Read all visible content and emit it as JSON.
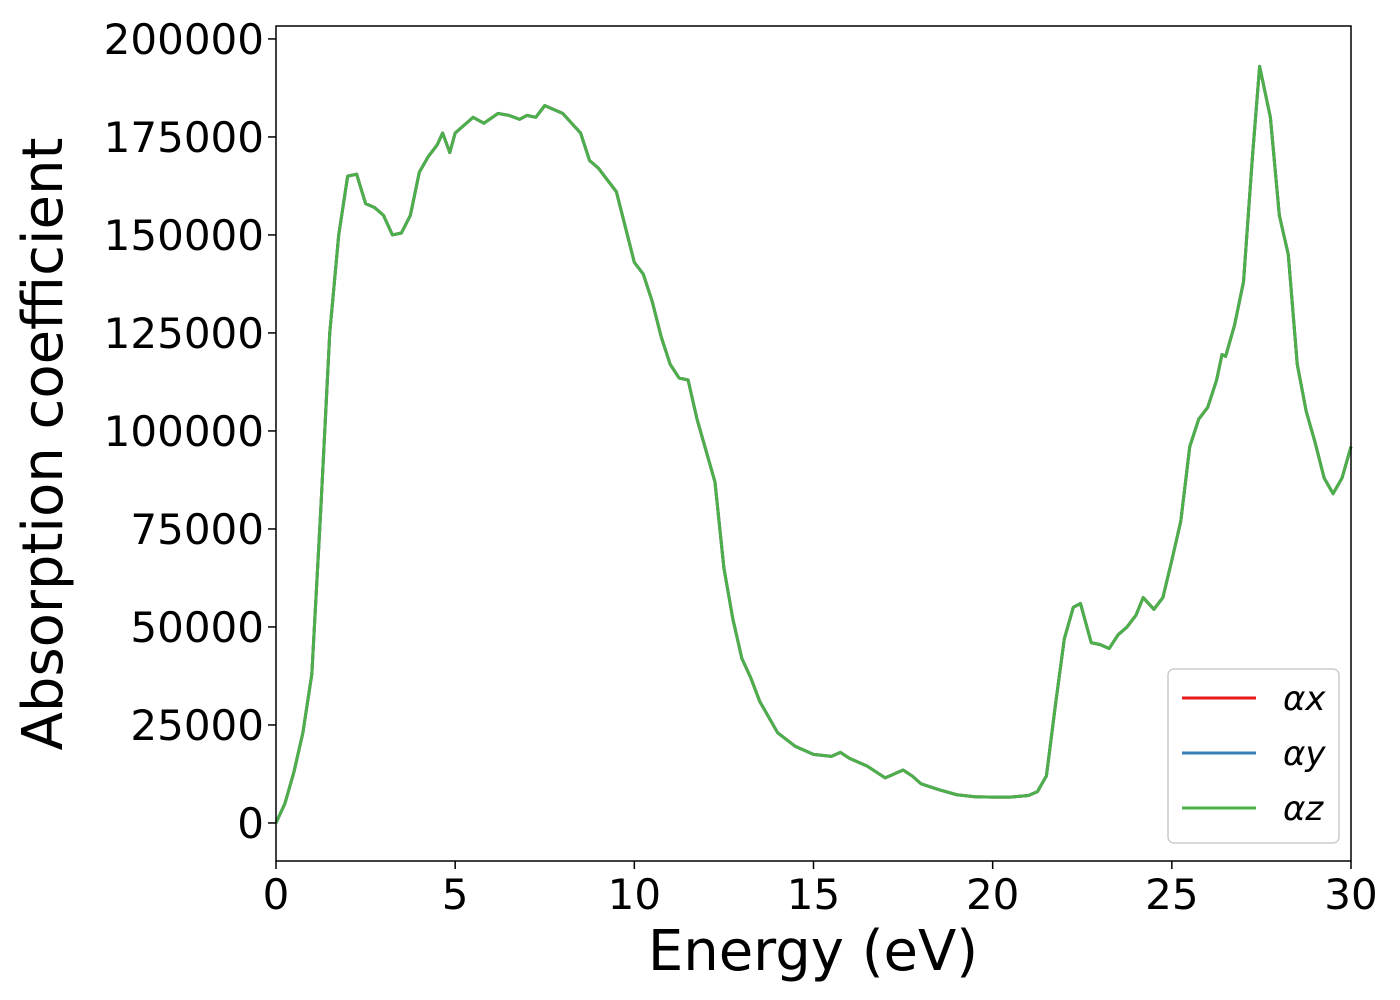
{
  "chart_data": {
    "type": "line",
    "xlabel": "Energy (eV)",
    "ylabel": "Absorption coefficient",
    "x": [
      0,
      0.25,
      0.5,
      0.75,
      1.0,
      1.25,
      1.5,
      1.75,
      2.0,
      2.25,
      2.5,
      2.75,
      3.0,
      3.25,
      3.5,
      3.75,
      4.0,
      4.25,
      4.5,
      4.65,
      4.85,
      5.0,
      5.5,
      5.8,
      6.2,
      6.5,
      6.8,
      7.0,
      7.25,
      7.5,
      7.75,
      8.0,
      8.5,
      8.75,
      9.0,
      9.5,
      10.0,
      10.25,
      10.5,
      10.75,
      11.0,
      11.25,
      11.5,
      11.75,
      12.0,
      12.25,
      12.5,
      12.75,
      13.0,
      13.25,
      13.5,
      13.75,
      14.0,
      14.5,
      15.0,
      15.5,
      15.75,
      16.0,
      16.5,
      17.0,
      17.5,
      17.75,
      18.0,
      18.5,
      19.0,
      19.5,
      20.0,
      20.5,
      21.0,
      21.25,
      21.5,
      21.75,
      22.0,
      22.25,
      22.45,
      22.75,
      23.0,
      23.25,
      23.5,
      23.75,
      24.0,
      24.2,
      24.5,
      24.75,
      25.0,
      25.25,
      25.5,
      25.75,
      26.0,
      26.25,
      26.4,
      26.5,
      26.75,
      27.0,
      27.25,
      27.45,
      27.75,
      28.0,
      28.25,
      28.5,
      28.75,
      29.0,
      29.25,
      29.5,
      29.75,
      30.0
    ],
    "series": [
      {
        "name": "αx",
        "color": "#e41a1c",
        "values": [
          0,
          5000,
          13000,
          23000,
          38000,
          80000,
          125000,
          150000,
          165000,
          165500,
          158000,
          157000,
          155000,
          150000,
          150500,
          155000,
          166000,
          170000,
          173000,
          176000,
          171000,
          176000,
          180000,
          178500,
          181000,
          180500,
          179500,
          180500,
          180000,
          183000,
          182000,
          181000,
          176000,
          169000,
          167000,
          161000,
          143000,
          140000,
          133000,
          124000,
          117000,
          113500,
          113000,
          103000,
          95000,
          87000,
          65000,
          52000,
          42000,
          37000,
          31000,
          27000,
          23000,
          19500,
          17500,
          17000,
          18000,
          16500,
          14500,
          11500,
          13500,
          12000,
          10000,
          8500,
          7200,
          6700,
          6600,
          6600,
          7000,
          8000,
          12000,
          30000,
          47000,
          55000,
          56000,
          46000,
          45500,
          44500,
          48000,
          50000,
          53000,
          57500,
          54500,
          57500,
          67000,
          77000,
          96000,
          103000,
          106000,
          113000,
          119500,
          119000,
          127000,
          138000,
          170000,
          193000,
          180000,
          155000,
          145000,
          117000,
          105000,
          97000,
          88000,
          84000,
          88000,
          96000
        ]
      },
      {
        "name": "αy",
        "color": "#377eb8",
        "values": [
          0,
          5000,
          13000,
          23000,
          38000,
          80000,
          125000,
          150000,
          165000,
          165500,
          158000,
          157000,
          155000,
          150000,
          150500,
          155000,
          166000,
          170000,
          173000,
          176000,
          171000,
          176000,
          180000,
          178500,
          181000,
          180500,
          179500,
          180500,
          180000,
          183000,
          182000,
          181000,
          176000,
          169000,
          167000,
          161000,
          143000,
          140000,
          133000,
          124000,
          117000,
          113500,
          113000,
          103000,
          95000,
          87000,
          65000,
          52000,
          42000,
          37000,
          31000,
          27000,
          23000,
          19500,
          17500,
          17000,
          18000,
          16500,
          14500,
          11500,
          13500,
          12000,
          10000,
          8500,
          7200,
          6700,
          6600,
          6600,
          7000,
          8000,
          12000,
          30000,
          47000,
          55000,
          56000,
          46000,
          45500,
          44500,
          48000,
          50000,
          53000,
          57500,
          54500,
          57500,
          67000,
          77000,
          96000,
          103000,
          106000,
          113000,
          119500,
          119000,
          127000,
          138000,
          170000,
          193000,
          180000,
          155000,
          145000,
          117000,
          105000,
          97000,
          88000,
          84000,
          88000,
          96000
        ]
      },
      {
        "name": "αz",
        "color": "#4daf4a",
        "values": [
          0,
          5000,
          13000,
          23000,
          38000,
          80000,
          125000,
          150000,
          165000,
          165500,
          158000,
          157000,
          155000,
          150000,
          150500,
          155000,
          166000,
          170000,
          173000,
          176000,
          171000,
          176000,
          180000,
          178500,
          181000,
          180500,
          179500,
          180500,
          180000,
          183000,
          182000,
          181000,
          176000,
          169000,
          167000,
          161000,
          143000,
          140000,
          133000,
          124000,
          117000,
          113500,
          113000,
          103000,
          95000,
          87000,
          65000,
          52000,
          42000,
          37000,
          31000,
          27000,
          23000,
          19500,
          17500,
          17000,
          18000,
          16500,
          14500,
          11500,
          13500,
          12000,
          10000,
          8500,
          7200,
          6700,
          6600,
          6600,
          7000,
          8000,
          12000,
          30000,
          47000,
          55000,
          56000,
          46000,
          45500,
          44500,
          48000,
          50000,
          53000,
          57500,
          54500,
          57500,
          67000,
          77000,
          96000,
          103000,
          106000,
          113000,
          119500,
          119000,
          127000,
          138000,
          170000,
          193000,
          180000,
          155000,
          145000,
          117000,
          105000,
          97000,
          88000,
          84000,
          88000,
          96000
        ]
      }
    ],
    "xlim": [
      0,
      30
    ],
    "xticks": [
      0,
      5,
      10,
      15,
      20,
      25,
      30
    ],
    "ylim": [
      -9700,
      203300
    ],
    "yticks": [
      0,
      25000,
      50000,
      75000,
      100000,
      125000,
      150000,
      175000,
      200000
    ],
    "legend": "lower right",
    "grid": false
  }
}
